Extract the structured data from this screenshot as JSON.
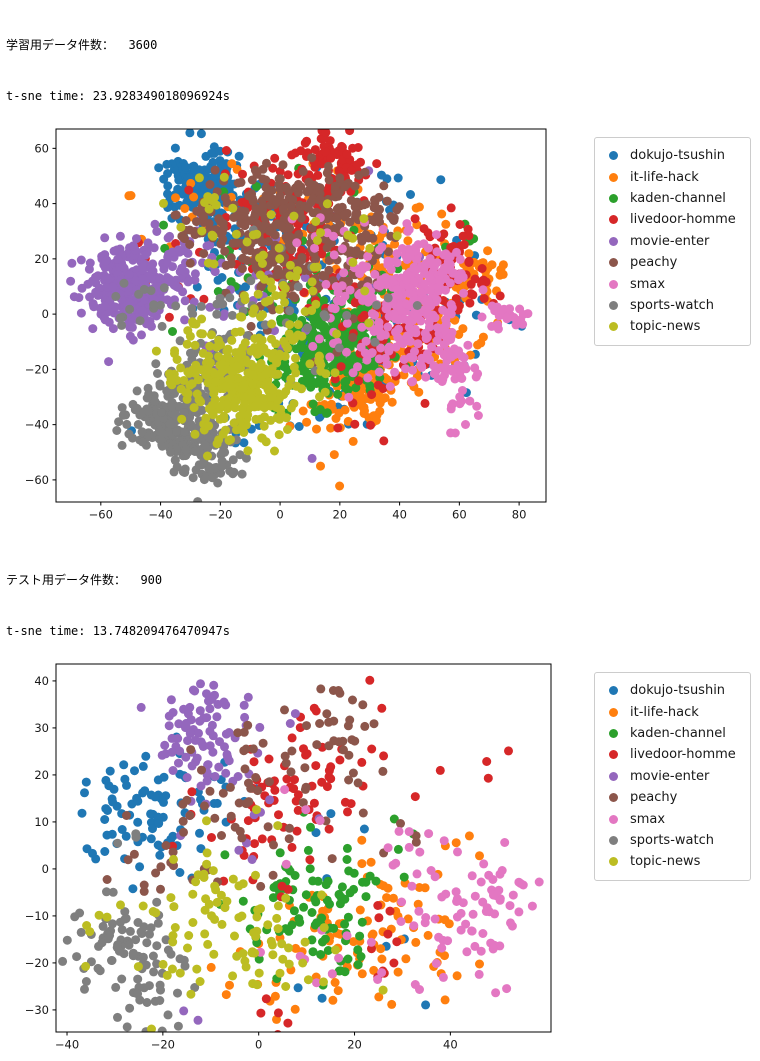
{
  "page": {
    "background": "#ffffff"
  },
  "colors": {
    "axis": "#000000",
    "tick_text": "#191919",
    "legend_border": "#cccccc"
  },
  "chart_data": [
    {
      "type": "scatter",
      "title": "学習用データ件数：  3600",
      "subtitle": "t-sne time: 23.928349018096924s",
      "xlabel": "",
      "ylabel": "",
      "grid": false,
      "legend_position": "outside-right",
      "point_count": 3600,
      "xlim": [
        -75,
        89
      ],
      "ylim": [
        -68,
        67
      ],
      "xticks": [
        -60,
        -40,
        -20,
        0,
        20,
        40,
        60,
        80
      ],
      "yticks": [
        -60,
        -40,
        -20,
        0,
        20,
        40,
        60
      ],
      "marker_diameter_px": 9,
      "cluster_format": "[center_x, center_y, stddev, count]",
      "series": [
        {
          "name": "dokujo-tsushin",
          "color": "#1f77b4",
          "clusters": [
            [
              -25,
              46,
              6,
              190
            ],
            [
              -13,
              30,
              8,
              50
            ],
            [
              3,
              14,
              16,
              60
            ],
            [
              55,
              2,
              9,
              30
            ],
            [
              28,
              38,
              10,
              20
            ],
            [
              -3,
              -25,
              13,
              25
            ],
            [
              20,
              -32,
              9,
              15
            ],
            [
              45,
              -15,
              8,
              10
            ]
          ]
        },
        {
          "name": "it-life-hack",
          "color": "#ff7f0e",
          "clusters": [
            [
              28,
              -28,
              6,
              110
            ],
            [
              40,
              -14,
              7,
              50
            ],
            [
              66,
              15,
              4,
              30
            ],
            [
              48,
              15,
              8,
              35
            ],
            [
              33,
              25,
              10,
              35
            ],
            [
              12,
              32,
              12,
              25
            ],
            [
              -18,
              22,
              15,
              15
            ],
            [
              58,
              -5,
              7,
              30
            ],
            [
              35,
              3,
              9,
              40
            ],
            [
              18,
              -42,
              8,
              20
            ],
            [
              -30,
              40,
              8,
              10
            ]
          ]
        },
        {
          "name": "kaden-channel",
          "color": "#2ca02c",
          "clusters": [
            [
              18,
              -7,
              8,
              250
            ],
            [
              8,
              -20,
              7,
              60
            ],
            [
              28,
              -18,
              6,
              40
            ],
            [
              5,
              28,
              14,
              20
            ],
            [
              -12,
              18,
              14,
              15
            ],
            [
              62,
              28,
              3,
              5
            ],
            [
              35,
              10,
              6,
              10
            ]
          ]
        },
        {
          "name": "livedoor-homme",
          "color": "#d62728",
          "clusters": [
            [
              17,
              53,
              6,
              90
            ],
            [
              2,
              22,
              9,
              70
            ],
            [
              42,
              -6,
              10,
              55
            ],
            [
              55,
              25,
              7,
              35
            ],
            [
              25,
              10,
              11,
              50
            ],
            [
              -5,
              42,
              9,
              30
            ],
            [
              62,
              8,
              7,
              25
            ],
            [
              10,
              40,
              8,
              25
            ],
            [
              -35,
              15,
              10,
              10
            ],
            [
              30,
              -35,
              8,
              10
            ]
          ]
        },
        {
          "name": "movie-enter",
          "color": "#9467bd",
          "clusters": [
            [
              -50,
              9,
              8,
              320
            ],
            [
              -33,
              20,
              7,
              40
            ],
            [
              -20,
              0,
              10,
              20
            ],
            [
              5,
              5,
              20,
              20
            ]
          ]
        },
        {
          "name": "peachy",
          "color": "#8c564b",
          "clusters": [
            [
              -4,
              36,
              9,
              130
            ],
            [
              18,
              41,
              7,
              70
            ],
            [
              5,
              22,
              9,
              60
            ],
            [
              -24,
              31,
              7,
              40
            ],
            [
              30,
              31,
              7,
              35
            ],
            [
              -2,
              8,
              13,
              40
            ],
            [
              25,
              18,
              8,
              25
            ]
          ]
        },
        {
          "name": "smax",
          "color": "#e377c2",
          "clusters": [
            [
              46,
              8,
              7,
              150
            ],
            [
              50,
              -10,
              7,
              60
            ],
            [
              35,
              -3,
              8,
              50
            ],
            [
              57,
              -20,
              5,
              25
            ],
            [
              73,
              -1,
              3,
              15
            ],
            [
              80,
              0,
              2,
              8
            ],
            [
              25,
              12,
              7,
              20
            ],
            [
              55,
              20,
              4,
              15
            ],
            [
              42,
              22,
              5,
              20
            ],
            [
              20,
              -15,
              8,
              15
            ],
            [
              60,
              -35,
              5,
              12
            ],
            [
              15,
              30,
              6,
              10
            ]
          ]
        },
        {
          "name": "sports-watch",
          "color": "#7f7f7f",
          "clusters": [
            [
              -38,
              -38,
              6,
              140
            ],
            [
              -26,
              -50,
              6,
              120
            ],
            [
              -31,
              -26,
              7,
              60
            ],
            [
              -16,
              -13,
              9,
              40
            ],
            [
              -46,
              2,
              5,
              15
            ],
            [
              0,
              2,
              18,
              15
            ],
            [
              25,
              -8,
              10,
              10
            ]
          ]
        },
        {
          "name": "topic-news",
          "color": "#bcbd22",
          "clusters": [
            [
              -12,
              -28,
              9,
              240
            ],
            [
              -27,
              -17,
              7,
              45
            ],
            [
              -2,
              -13,
              9,
              45
            ],
            [
              -6,
              14,
              13,
              30
            ],
            [
              -24,
              44,
              7,
              15
            ],
            [
              18,
              25,
              10,
              15
            ],
            [
              18,
              -5,
              8,
              10
            ]
          ]
        }
      ]
    },
    {
      "type": "scatter",
      "title": "テスト用データ件数：  900",
      "subtitle": "t-sne time: 13.748209476470947s",
      "xlabel": "",
      "ylabel": "",
      "grid": false,
      "legend_position": "outside-right",
      "point_count": 900,
      "xlim": [
        -42.3,
        61
      ],
      "ylim": [
        -34.7,
        43.6
      ],
      "xticks": [
        -40,
        -20,
        0,
        20,
        40
      ],
      "yticks": [
        -30,
        -20,
        -10,
        0,
        10,
        20,
        30,
        40
      ],
      "marker_diameter_px": 9,
      "cluster_format": "[center_x, center_y, stddev, count]",
      "series": [
        {
          "name": "dokujo-tsushin",
          "color": "#1f77b4",
          "clusters": [
            [
              -25,
              12,
              6,
              75
            ],
            [
              -13,
              19,
              4,
              10
            ],
            [
              8,
              15,
              10,
              10
            ],
            [
              30,
              -25,
              5,
              3
            ],
            [
              12,
              -28,
              3,
              2
            ]
          ]
        },
        {
          "name": "it-life-hack",
          "color": "#ff7f0e",
          "clusters": [
            [
              21,
              -13,
              7,
              60
            ],
            [
              8,
              -23,
              8,
              15
            ],
            [
              40,
              -17,
              5,
              10
            ],
            [
              30,
              -5,
              5,
              8
            ],
            [
              42,
              6,
              3,
              4
            ],
            [
              -8,
              -25,
              5,
              3
            ]
          ]
        },
        {
          "name": "kaden-channel",
          "color": "#2ca02c",
          "clusters": [
            [
              8,
              -9,
              7,
              75
            ],
            [
              18,
              -15,
              5,
              15
            ],
            [
              3,
              3,
              5,
              5
            ],
            [
              28,
              2,
              4,
              5
            ]
          ]
        },
        {
          "name": "livedoor-homme",
          "color": "#d62728",
          "clusters": [
            [
              10,
              18,
              6,
              45
            ],
            [
              3,
              8,
              8,
              20
            ],
            [
              28,
              -16,
              5,
              10
            ],
            [
              18,
              28,
              5,
              10
            ],
            [
              -10,
              5,
              8,
              5
            ],
            [
              3,
              -30,
              2,
              5
            ],
            [
              50,
              23,
              3,
              3
            ],
            [
              35,
              22,
              3,
              2
            ]
          ]
        },
        {
          "name": "movie-enter",
          "color": "#9467bd",
          "clusters": [
            [
              -10,
              28,
              6,
              80
            ],
            [
              -2,
              18,
              6,
              10
            ],
            [
              -12,
              14,
              4,
              5
            ],
            [
              -3,
              -2,
              4,
              3
            ],
            [
              -13,
              -32,
              2,
              2
            ]
          ]
        },
        {
          "name": "peachy",
          "color": "#8c564b",
          "clusters": [
            [
              15,
              31,
              4,
              25
            ],
            [
              5,
              18,
              8,
              30
            ],
            [
              -12,
              8,
              9,
              20
            ],
            [
              -20,
              -3,
              6,
              10
            ],
            [
              8,
              5,
              8,
              10
            ],
            [
              28,
              10,
              4,
              5
            ]
          ]
        },
        {
          "name": "smax",
          "color": "#e377c2",
          "clusters": [
            [
              44,
              -9,
              7,
              60
            ],
            [
              52,
              -3,
              3,
              10
            ],
            [
              33,
              3,
              4,
              8
            ],
            [
              20,
              -22,
              6,
              8
            ],
            [
              10,
              -17,
              5,
              5
            ],
            [
              48,
              -22,
              4,
              5
            ],
            [
              8,
              8,
              6,
              4
            ]
          ]
        },
        {
          "name": "sports-watch",
          "color": "#7f7f7f",
          "clusters": [
            [
              -28,
              -17,
              6,
              80
            ],
            [
              -20,
              -28,
              4,
              12
            ],
            [
              -33,
              -10,
              3,
              5
            ],
            [
              -27,
              5,
              2,
              3
            ]
          ]
        },
        {
          "name": "topic-news",
          "color": "#bcbd22",
          "clusters": [
            [
              -8,
              -11,
              8,
              75
            ],
            [
              3,
              -20,
              6,
              10
            ],
            [
              -35,
              -10,
              3,
              5
            ],
            [
              17,
              -20,
              4,
              5
            ],
            [
              -12,
              3,
              4,
              5
            ]
          ]
        }
      ]
    }
  ]
}
